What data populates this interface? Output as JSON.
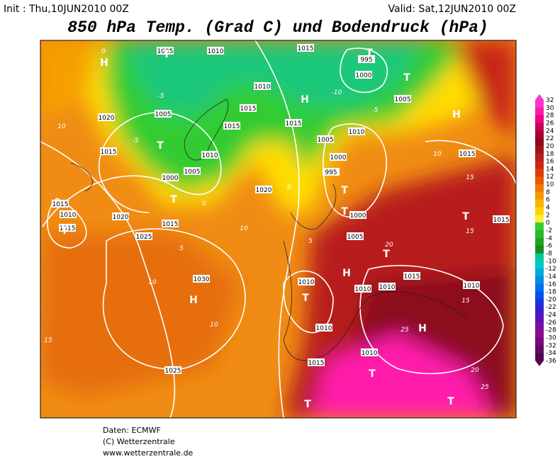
{
  "header": {
    "init": "Init : Thu,10JUN2010 00Z",
    "valid": "Valid: Sat,12JUN2010 00Z",
    "title": "850 hPa Temp. (Grad C) und Bodendruck (hPa)"
  },
  "map": {
    "isobar_labels": [
      1005,
      1010,
      1015,
      995,
      1000,
      1005,
      1010,
      1005,
      1015,
      1015,
      1015,
      1020,
      1015,
      1010,
      1005,
      1000,
      1020,
      1005,
      1000,
      995,
      1010,
      1000,
      1005,
      1015,
      1010,
      1015,
      1020,
      1025,
      1015,
      1030,
      1010,
      1010,
      1010,
      1015,
      1010,
      1015,
      1015,
      1010,
      1010,
      1015,
      1025
    ],
    "temperature_labels": [
      0,
      -5,
      -5,
      10,
      10,
      10,
      10,
      15,
      15,
      15,
      15,
      20,
      25,
      20,
      25,
      10,
      -10,
      -5,
      5,
      5,
      0,
      0
    ],
    "centers": [
      "H",
      "T",
      "T",
      "H",
      "T",
      "H",
      "T",
      "T",
      "T",
      "T",
      "T",
      "H",
      "T",
      "H",
      "T",
      "T",
      "H",
      "T",
      "T",
      "T"
    ]
  },
  "colorbar": {
    "labels": [
      32,
      30,
      28,
      26,
      24,
      22,
      20,
      18,
      16,
      14,
      12,
      10,
      8,
      6,
      4,
      2,
      0,
      -2,
      -4,
      -6,
      -8,
      -10,
      -12,
      -14,
      -16,
      -18,
      -20,
      -22,
      -24,
      -26,
      -28,
      -30,
      -32,
      -34,
      -36
    ],
    "colors": [
      "#ff33cc",
      "#ff1aaa",
      "#ee0088",
      "#cc0055",
      "#aa0033",
      "#8c0a1e",
      "#a01414",
      "#b41e1e",
      "#c82814",
      "#dc3c0a",
      "#e65a00",
      "#f07800",
      "#f59600",
      "#fab400",
      "#ffd200",
      "#ffee33",
      "#33cc33",
      "#2ab82a",
      "#22a322",
      "#198c19",
      "#00c896",
      "#00c8c8",
      "#00aadc",
      "#008ce6",
      "#006ef0",
      "#0050f0",
      "#1e32dc",
      "#3c1ec8",
      "#5a14b4",
      "#7810a0",
      "#8c0a8c",
      "#780a78",
      "#640a64",
      "#500a50"
    ]
  },
  "footer": [
    "Daten: ECMWF",
    "(C) Wetterzentrale",
    "www.wetterzentrale.de"
  ]
}
